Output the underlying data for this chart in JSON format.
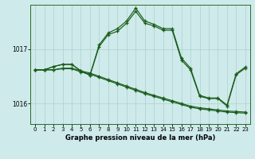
{
  "xlabel": "Graphe pression niveau de la mer (hPa)",
  "bg_color": "#ceeaea",
  "grid_color": "#aed0d0",
  "line_color": "#1a5c1a",
  "ylim": [
    1015.62,
    1017.82
  ],
  "xlim": [
    -0.5,
    23.5
  ],
  "yticks": [
    1016,
    1017
  ],
  "xticks": [
    0,
    1,
    2,
    3,
    4,
    5,
    6,
    7,
    8,
    9,
    10,
    11,
    12,
    13,
    14,
    15,
    16,
    17,
    18,
    19,
    20,
    21,
    22,
    23
  ],
  "main": [
    1016.62,
    1016.62,
    1016.68,
    1016.72,
    1016.72,
    1016.6,
    1016.52,
    1017.08,
    1017.3,
    1017.38,
    1017.52,
    1017.76,
    1017.52,
    1017.46,
    1017.38,
    1017.38,
    1016.84,
    1016.65,
    1016.15,
    1016.1,
    1016.1,
    1015.97,
    1016.55,
    1016.67
  ],
  "curve2": [
    1016.62,
    1016.62,
    1016.68,
    1016.72,
    1016.72,
    1016.6,
    1016.52,
    1017.05,
    1017.27,
    1017.33,
    1017.48,
    1017.7,
    1017.48,
    1017.43,
    1017.35,
    1017.35,
    1016.8,
    1016.62,
    1016.13,
    1016.09,
    1016.09,
    1015.95,
    1016.53,
    1016.65
  ],
  "flat1": [
    1016.62,
    1016.62,
    1016.62,
    1016.65,
    1016.65,
    1016.6,
    1016.56,
    1016.5,
    1016.44,
    1016.38,
    1016.32,
    1016.26,
    1016.2,
    1016.15,
    1016.1,
    1016.05,
    1016.0,
    1015.95,
    1015.92,
    1015.9,
    1015.88,
    1015.86,
    1015.85,
    1015.84
  ],
  "flat2": [
    1016.62,
    1016.62,
    1016.62,
    1016.64,
    1016.64,
    1016.58,
    1016.54,
    1016.48,
    1016.42,
    1016.36,
    1016.3,
    1016.24,
    1016.18,
    1016.13,
    1016.08,
    1016.03,
    1015.98,
    1015.93,
    1015.9,
    1015.88,
    1015.86,
    1015.84,
    1015.83,
    1015.82
  ]
}
